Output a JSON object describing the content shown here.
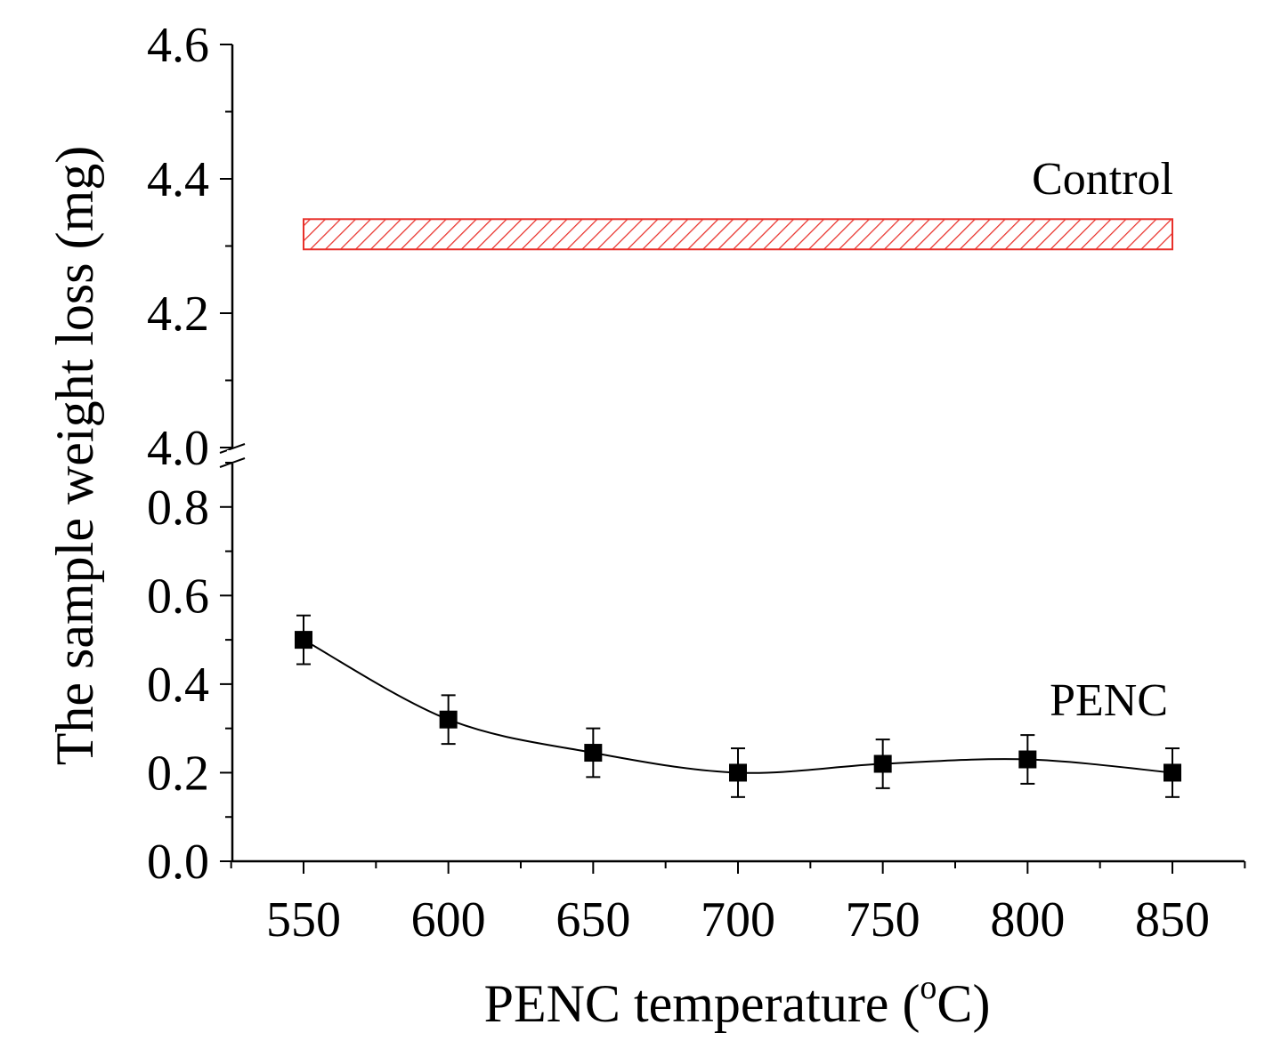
{
  "chart_data": {
    "type": "line",
    "title": "",
    "xlabel": "PENC temperature (",
    "xlabel_superscript": "o",
    "xlabel_suffix": "C)",
    "ylabel": "The sample weight loss (mg)",
    "xlim": [
      525,
      875
    ],
    "x_ticks": [
      550,
      600,
      650,
      700,
      750,
      800,
      850
    ],
    "x_tick_labels": [
      "550",
      "600",
      "650",
      "700",
      "750",
      "800",
      "850"
    ],
    "y_axis_break": true,
    "y_lower_range": [
      0.0,
      0.9
    ],
    "y_lower_ticks": [
      0.0,
      0.2,
      0.4,
      0.6,
      0.8
    ],
    "y_lower_tick_labels": [
      "0.0",
      "0.2",
      "0.4",
      "0.6",
      "0.8"
    ],
    "y_upper_range": [
      4.0,
      4.6
    ],
    "y_upper_ticks": [
      4.0,
      4.2,
      4.4,
      4.6
    ],
    "y_upper_tick_labels": [
      "4.0",
      "4.2",
      "4.4",
      "4.6"
    ],
    "series": [
      {
        "name": "PENC",
        "marker": "square",
        "color": "#000000",
        "x": [
          550,
          600,
          650,
          700,
          750,
          800,
          850
        ],
        "y": [
          0.5,
          0.32,
          0.245,
          0.2,
          0.22,
          0.23,
          0.2
        ],
        "error": [
          0.055,
          0.055,
          0.055,
          0.055,
          0.055,
          0.055,
          0.055
        ]
      }
    ],
    "control_band": {
      "name": "Control",
      "color": "#e8302a",
      "pattern": "hatched",
      "x_range": [
        550,
        850
      ],
      "y_range": [
        4.295,
        4.34
      ]
    },
    "grid": false,
    "legend": "none"
  }
}
